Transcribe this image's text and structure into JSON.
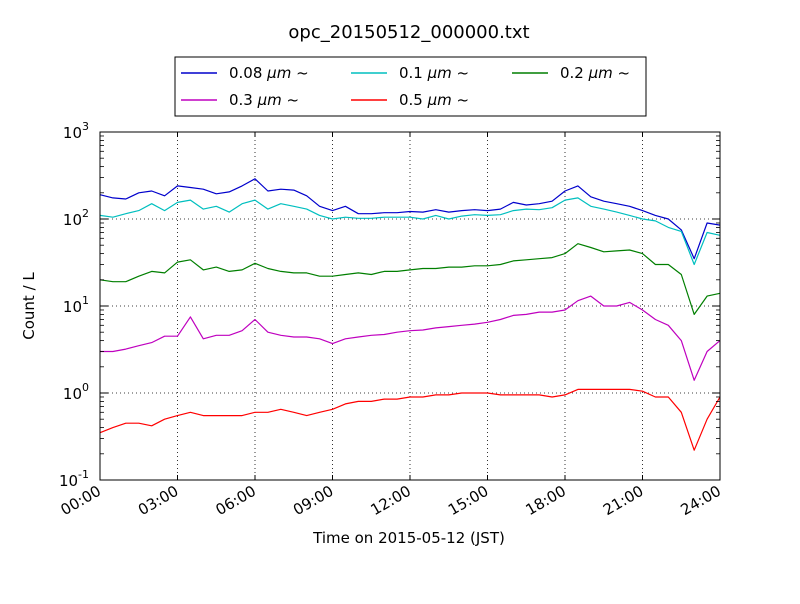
{
  "chart_data": {
    "type": "line",
    "title": "opc_20150512_000000.txt",
    "xlabel": "Time on 2015-05-12 (JST)",
    "ylabel": "Count / L",
    "x_unit": "hours",
    "xlim": [
      0,
      24
    ],
    "ylim": [
      0.1,
      1000
    ],
    "yscale": "log",
    "grid": true,
    "legend_position": "top-center, outside plot",
    "x_ticks": [
      {
        "value": 0,
        "label": "00:00"
      },
      {
        "value": 3,
        "label": "03:00"
      },
      {
        "value": 6,
        "label": "06:00"
      },
      {
        "value": 9,
        "label": "09:00"
      },
      {
        "value": 12,
        "label": "12:00"
      },
      {
        "value": 15,
        "label": "15:00"
      },
      {
        "value": 18,
        "label": "18:00"
      },
      {
        "value": 21,
        "label": "21:00"
      },
      {
        "value": 24,
        "label": "24:00"
      }
    ],
    "y_ticks": [
      {
        "value": 0.1,
        "base": "10",
        "exp": "-1"
      },
      {
        "value": 1,
        "base": "10",
        "exp": "0"
      },
      {
        "value": 10,
        "base": "10",
        "exp": "1"
      },
      {
        "value": 100,
        "base": "10",
        "exp": "2"
      },
      {
        "value": 1000,
        "base": "10",
        "exp": "3"
      }
    ],
    "x": [
      0,
      0.5,
      1,
      1.5,
      2,
      2.5,
      3,
      3.5,
      4,
      4.5,
      5,
      5.5,
      6,
      6.5,
      7,
      7.5,
      8,
      8.5,
      9,
      9.5,
      10,
      10.5,
      11,
      11.5,
      12,
      12.5,
      13,
      13.5,
      14,
      14.5,
      15,
      15.5,
      16,
      16.5,
      17,
      17.5,
      18,
      18.5,
      19,
      19.5,
      20,
      20.5,
      21,
      21.5,
      22,
      22.5,
      23,
      23.5,
      24
    ],
    "series": [
      {
        "name": "0.08 μm ~",
        "legend_size": "0.08",
        "legend_unit": "μm ~",
        "color": "#0000cc",
        "values": [
          190,
          175,
          170,
          200,
          210,
          185,
          240,
          230,
          220,
          195,
          205,
          240,
          290,
          210,
          220,
          215,
          185,
          140,
          125,
          140,
          115,
          115,
          118,
          118,
          122,
          120,
          128,
          120,
          125,
          128,
          125,
          130,
          155,
          145,
          150,
          160,
          210,
          240,
          180,
          160,
          150,
          140,
          125,
          110,
          100,
          75,
          35,
          90,
          85
        ]
      },
      {
        "name": "0.1 μm ~",
        "legend_size": "0.1",
        "legend_unit": "μm ~",
        "color": "#00bfbf",
        "values": [
          110,
          105,
          115,
          125,
          150,
          125,
          155,
          165,
          130,
          140,
          120,
          150,
          165,
          130,
          150,
          140,
          130,
          110,
          100,
          105,
          102,
          102,
          105,
          105,
          105,
          100,
          110,
          100,
          108,
          112,
          110,
          112,
          125,
          130,
          128,
          135,
          165,
          175,
          140,
          130,
          120,
          110,
          100,
          95,
          80,
          72,
          30,
          70,
          65
        ]
      },
      {
        "name": "0.2 μm ~",
        "legend_size": "0.2",
        "legend_unit": "μm ~",
        "color": "#007f00",
        "values": [
          20,
          19,
          19,
          22,
          25,
          24,
          32,
          34,
          26,
          28,
          25,
          26,
          31,
          27,
          25,
          24,
          24,
          22,
          22,
          23,
          24,
          23,
          25,
          25,
          26,
          27,
          27,
          28,
          28,
          29,
          29,
          30,
          33,
          34,
          35,
          36,
          40,
          52,
          47,
          42,
          43,
          44,
          40,
          30,
          30,
          23,
          8,
          13,
          14
        ]
      },
      {
        "name": "0.3 μm ~",
        "legend_size": "0.3",
        "legend_unit": "μm ~",
        "color": "#bf00bf",
        "values": [
          3,
          3,
          3.2,
          3.5,
          3.8,
          4.5,
          4.5,
          7.5,
          4.2,
          4.6,
          4.6,
          5.2,
          7,
          5,
          4.6,
          4.4,
          4.4,
          4.2,
          3.7,
          4.2,
          4.4,
          4.6,
          4.7,
          5,
          5.2,
          5.3,
          5.6,
          5.8,
          6,
          6.2,
          6.5,
          7,
          7.8,
          8,
          8.5,
          8.5,
          9,
          11.5,
          13,
          10,
          10,
          11,
          9,
          7,
          6,
          4,
          1.4,
          3,
          4
        ]
      },
      {
        "name": "0.5 μm ~",
        "legend_size": "0.5",
        "legend_unit": "μm ~",
        "color": "#ff0000",
        "values": [
          0.35,
          0.4,
          0.45,
          0.45,
          0.42,
          0.5,
          0.55,
          0.6,
          0.55,
          0.55,
          0.55,
          0.55,
          0.6,
          0.6,
          0.65,
          0.6,
          0.55,
          0.6,
          0.65,
          0.75,
          0.8,
          0.8,
          0.85,
          0.85,
          0.9,
          0.9,
          0.95,
          0.95,
          1,
          1,
          1,
          0.95,
          0.95,
          0.95,
          0.95,
          0.9,
          0.95,
          1.1,
          1.1,
          1.1,
          1.1,
          1.1,
          1.05,
          0.9,
          0.9,
          0.6,
          0.22,
          0.5,
          0.9
        ]
      }
    ]
  }
}
